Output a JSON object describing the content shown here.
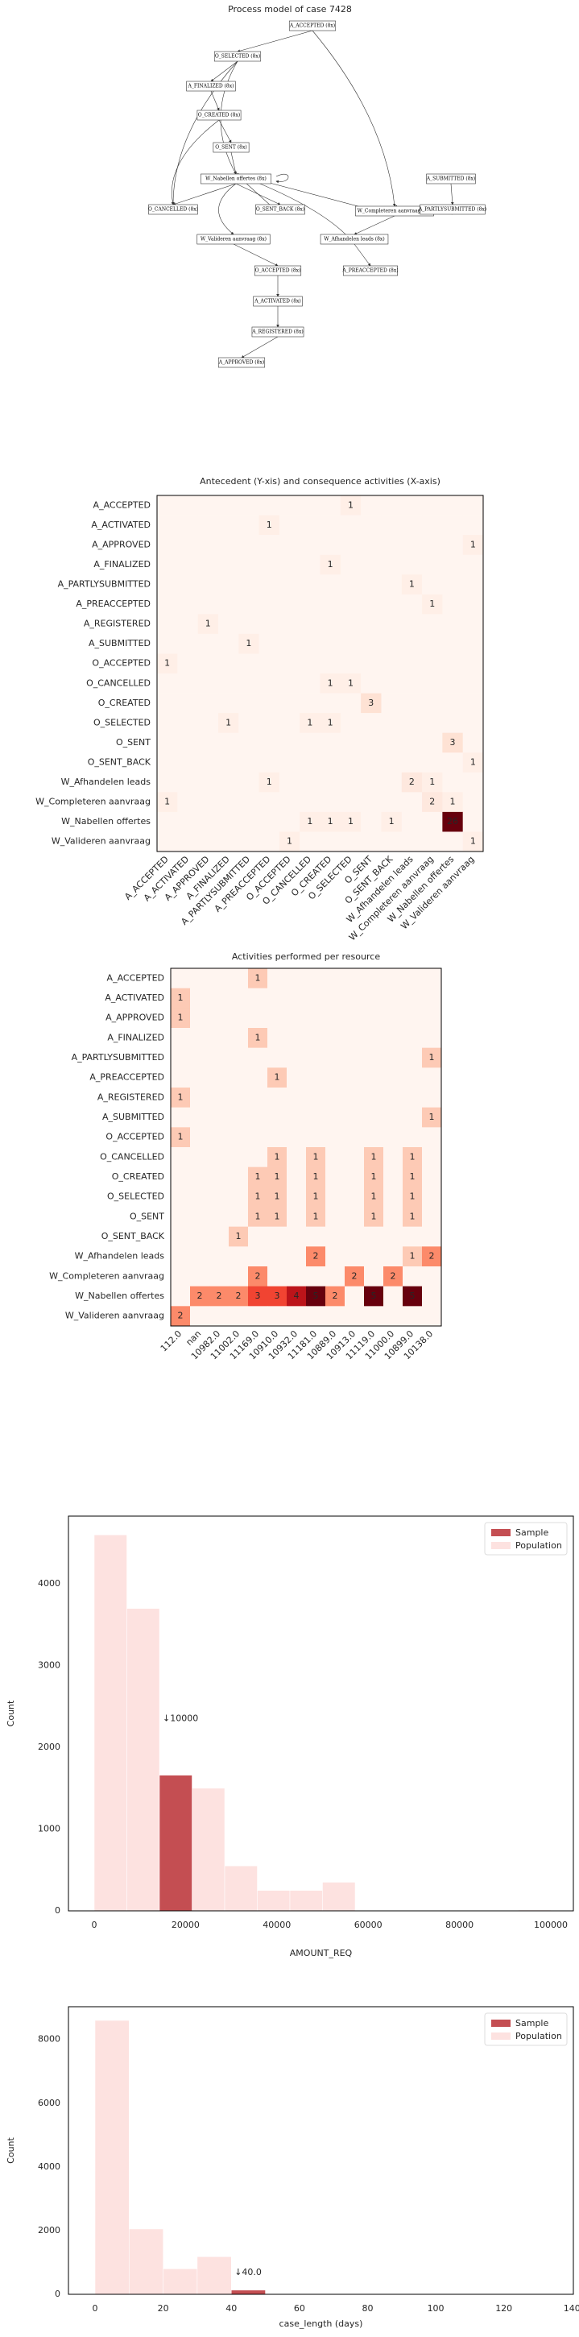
{
  "diagram": {
    "title": "Process model of case 7428",
    "nodes": [
      "A_ACCEPTED (8x)",
      "O_SELECTED (8x)",
      "A_FINALIZED (8x)",
      "O_CREATED (8x)",
      "O_SENT (8x)",
      "W_Nabellen offertes (8x)",
      "O_CANCELLED (8x)",
      "O_SENT_BACK (8x)",
      "W_Completeren aanvraag (8x)",
      "A_SUBMITTED (8x)",
      "A_PARTLYSUBMITTED (8x)",
      "W_Valideren aanvraag (8x)",
      "W_Afhandelen leads (8x)",
      "O_ACCEPTED (8x)",
      "A_PREACCEPTED (8x)",
      "A_ACTIVATED (8x)",
      "A_REGISTERED (8x)",
      "A_APPROVED (8x)"
    ]
  },
  "chart_data": [
    {
      "type": "heatmap",
      "title": "Antecedent (Y-xis) and consequence activities (X-axis)",
      "colormap": "Reds",
      "rows": [
        "A_ACCEPTED",
        "A_ACTIVATED",
        "A_APPROVED",
        "A_FINALIZED",
        "A_PARTLYSUBMITTED",
        "A_PREACCEPTED",
        "A_REGISTERED",
        "A_SUBMITTED",
        "O_ACCEPTED",
        "O_CANCELLED",
        "O_CREATED",
        "O_SELECTED",
        "O_SENT",
        "O_SENT_BACK",
        "W_Afhandelen leads",
        "W_Completeren aanvraag",
        "W_Nabellen offertes",
        "W_Valideren aanvraag"
      ],
      "columns": [
        "A_ACCEPTED",
        "A_ACTIVATED",
        "A_APPROVED",
        "A_FINALIZED",
        "A_PARTLYSUBMITTED",
        "A_PREACCEPTED",
        "O_ACCEPTED",
        "O_CANCELLED",
        "O_CREATED",
        "O_SELECTED",
        "O_SENT",
        "O_SENT_BACK",
        "W_Afhandelen leads",
        "W_Completeren aanvraag",
        "W_Nabellen offertes",
        "W_Valideren aanvraag"
      ],
      "values": [
        [
          0,
          0,
          0,
          0,
          0,
          0,
          0,
          0,
          0,
          1,
          0,
          0,
          0,
          0,
          0,
          0
        ],
        [
          0,
          0,
          0,
          0,
          0,
          1,
          0,
          0,
          0,
          0,
          0,
          0,
          0,
          0,
          0,
          0
        ],
        [
          0,
          0,
          0,
          0,
          0,
          0,
          0,
          0,
          0,
          0,
          0,
          0,
          0,
          0,
          0,
          1
        ],
        [
          0,
          0,
          0,
          0,
          0,
          0,
          0,
          0,
          1,
          0,
          0,
          0,
          0,
          0,
          0,
          0
        ],
        [
          0,
          0,
          0,
          0,
          0,
          0,
          0,
          0,
          0,
          0,
          0,
          0,
          1,
          0,
          0,
          0
        ],
        [
          0,
          0,
          0,
          0,
          0,
          0,
          0,
          0,
          0,
          0,
          0,
          0,
          0,
          1,
          0,
          0
        ],
        [
          0,
          0,
          1,
          0,
          0,
          0,
          0,
          0,
          0,
          0,
          0,
          0,
          0,
          0,
          0,
          0
        ],
        [
          0,
          0,
          0,
          0,
          1,
          0,
          0,
          0,
          0,
          0,
          0,
          0,
          0,
          0,
          0,
          0
        ],
        [
          1,
          0,
          0,
          0,
          0,
          0,
          0,
          0,
          0,
          0,
          0,
          0,
          0,
          0,
          0,
          0
        ],
        [
          0,
          0,
          0,
          0,
          0,
          0,
          0,
          0,
          1,
          1,
          0,
          0,
          0,
          0,
          0,
          0
        ],
        [
          0,
          0,
          0,
          0,
          0,
          0,
          0,
          0,
          0,
          0,
          3,
          0,
          0,
          0,
          0,
          0
        ],
        [
          0,
          0,
          0,
          1,
          0,
          0,
          0,
          1,
          1,
          0,
          0,
          0,
          0,
          0,
          0,
          0
        ],
        [
          0,
          0,
          0,
          0,
          0,
          0,
          0,
          0,
          0,
          0,
          0,
          0,
          0,
          0,
          3,
          0
        ],
        [
          0,
          0,
          0,
          0,
          0,
          0,
          0,
          0,
          0,
          0,
          0,
          0,
          0,
          0,
          0,
          1
        ],
        [
          0,
          0,
          0,
          0,
          0,
          1,
          0,
          0,
          0,
          0,
          0,
          0,
          2,
          1,
          0,
          0
        ],
        [
          1,
          0,
          0,
          0,
          0,
          0,
          0,
          0,
          0,
          0,
          0,
          0,
          0,
          2,
          1,
          0
        ],
        [
          0,
          0,
          0,
          0,
          0,
          0,
          0,
          1,
          1,
          1,
          0,
          1,
          0,
          0,
          26,
          0
        ],
        [
          0,
          0,
          0,
          0,
          0,
          0,
          1,
          0,
          0,
          0,
          0,
          0,
          0,
          0,
          0,
          1
        ]
      ]
    },
    {
      "type": "heatmap",
      "title": "Activities performed per resource",
      "colormap": "Reds",
      "rows": [
        "A_ACCEPTED",
        "A_ACTIVATED",
        "A_APPROVED",
        "A_FINALIZED",
        "A_PARTLYSUBMITTED",
        "A_PREACCEPTED",
        "A_REGISTERED",
        "A_SUBMITTED",
        "O_ACCEPTED",
        "O_CANCELLED",
        "O_CREATED",
        "O_SELECTED",
        "O_SENT",
        "O_SENT_BACK",
        "W_Afhandelen leads",
        "W_Completeren aanvraag",
        "W_Nabellen offertes",
        "W_Valideren aanvraag"
      ],
      "columns": [
        "112.0",
        "nan",
        "10982.0",
        "11002.0",
        "11169.0",
        "10910.0",
        "10932.0",
        "11181.0",
        "10889.0",
        "10913.0",
        "11119.0",
        "11000.0",
        "10899.0",
        "10138.0"
      ],
      "values": [
        [
          0,
          0,
          0,
          0,
          1,
          0,
          0,
          0,
          0,
          0,
          0,
          0,
          0,
          0
        ],
        [
          1,
          0,
          0,
          0,
          0,
          0,
          0,
          0,
          0,
          0,
          0,
          0,
          0,
          0
        ],
        [
          1,
          0,
          0,
          0,
          0,
          0,
          0,
          0,
          0,
          0,
          0,
          0,
          0,
          0
        ],
        [
          0,
          0,
          0,
          0,
          1,
          0,
          0,
          0,
          0,
          0,
          0,
          0,
          0,
          0
        ],
        [
          0,
          0,
          0,
          0,
          0,
          0,
          0,
          0,
          0,
          0,
          0,
          0,
          0,
          1
        ],
        [
          0,
          0,
          0,
          0,
          0,
          1,
          0,
          0,
          0,
          0,
          0,
          0,
          0,
          0
        ],
        [
          1,
          0,
          0,
          0,
          0,
          0,
          0,
          0,
          0,
          0,
          0,
          0,
          0,
          0
        ],
        [
          0,
          0,
          0,
          0,
          0,
          0,
          0,
          0,
          0,
          0,
          0,
          0,
          0,
          1
        ],
        [
          1,
          0,
          0,
          0,
          0,
          0,
          0,
          0,
          0,
          0,
          0,
          0,
          0,
          0
        ],
        [
          0,
          0,
          0,
          0,
          0,
          1,
          0,
          1,
          0,
          0,
          1,
          0,
          1,
          0
        ],
        [
          0,
          0,
          0,
          0,
          1,
          1,
          0,
          1,
          0,
          0,
          1,
          0,
          1,
          0
        ],
        [
          0,
          0,
          0,
          0,
          1,
          1,
          0,
          1,
          0,
          0,
          1,
          0,
          1,
          0
        ],
        [
          0,
          0,
          0,
          0,
          1,
          1,
          0,
          1,
          0,
          0,
          1,
          0,
          1,
          0
        ],
        [
          0,
          0,
          0,
          1,
          0,
          0,
          0,
          0,
          0,
          0,
          0,
          0,
          0,
          0
        ],
        [
          0,
          0,
          0,
          0,
          0,
          0,
          0,
          2,
          0,
          0,
          0,
          0,
          1,
          2
        ],
        [
          0,
          0,
          0,
          0,
          2,
          0,
          0,
          0,
          0,
          2,
          0,
          2,
          0,
          0
        ],
        [
          0,
          2,
          2,
          2,
          3,
          3,
          4,
          5,
          2,
          0,
          5,
          0,
          5,
          0
        ],
        [
          2,
          0,
          0,
          0,
          0,
          0,
          0,
          0,
          0,
          0,
          0,
          0,
          0,
          0
        ]
      ]
    },
    {
      "type": "histogram",
      "xlabel": "AMOUNT_REQ",
      "ylabel": "Count",
      "legend": "upper right",
      "xlim": [
        -5644,
        104938
      ],
      "ylim": [
        0,
        4830
      ],
      "xticks": [
        0,
        20000,
        40000,
        60000,
        80000,
        100000
      ],
      "yticks": [
        0,
        1000,
        2000,
        3000,
        4000
      ],
      "annotation": "↓10000",
      "series": [
        {
          "name": "Sample",
          "color": "#c44e52",
          "bins": [
            14285.71,
            21428.57
          ],
          "counts": [
            1660
          ]
        },
        {
          "name": "Population",
          "color": "#fde2e0",
          "bins": [
            0,
            7142.86,
            14285.71,
            21428.57,
            28571.43,
            35714.29,
            42857.14,
            50000,
            57142.86,
            64285.71,
            71428.57,
            78571.43,
            85714.29,
            92857.14,
            100000
          ],
          "counts": [
            4600,
            3700,
            1660,
            1500,
            550,
            250,
            250,
            350,
            0,
            0,
            0,
            0,
            0,
            10
          ]
        }
      ]
    },
    {
      "type": "histogram",
      "xlabel": "case_length (days)",
      "ylabel": "Count",
      "legend": "upper right",
      "xlim": [
        -7.8,
        140.4
      ],
      "ylim": [
        0,
        9030
      ],
      "xticks": [
        0,
        20,
        40,
        60,
        80,
        100,
        120,
        140
      ],
      "yticks": [
        0,
        2000,
        4000,
        6000,
        8000
      ],
      "annotation": "↓40.0",
      "series": [
        {
          "name": "Sample",
          "color": "#c44e52",
          "bins": [
            40,
            50
          ],
          "counts": [
            130
          ]
        },
        {
          "name": "Population",
          "color": "#fde2e0",
          "bins": [
            0,
            10,
            20,
            30,
            40,
            50,
            60,
            70,
            80,
            90,
            100,
            110,
            120,
            130,
            140
          ],
          "counts": [
            8600,
            2050,
            800,
            1180,
            130,
            0,
            0,
            0,
            0,
            0,
            0,
            0,
            0,
            0
          ]
        }
      ]
    }
  ]
}
